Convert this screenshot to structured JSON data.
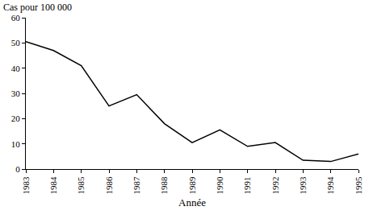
{
  "chart_data": {
    "type": "line",
    "ylabel": "Cas pour 100 000",
    "xlabel": "Année",
    "x": [
      1983,
      1984,
      1985,
      1986,
      1987,
      1988,
      1989,
      1990,
      1991,
      1992,
      1993,
      1994,
      1995
    ],
    "values": [
      50.5,
      47,
      41,
      25,
      29.5,
      18,
      10.5,
      15.5,
      9,
      10.5,
      3.5,
      3,
      6
    ],
    "color": "#000000",
    "xlim": [
      1983,
      1995
    ],
    "xticks": [
      1983,
      1984,
      1985,
      1986,
      1987,
      1988,
      1989,
      1990,
      1991,
      1992,
      1993,
      1994,
      1995
    ],
    "ylim": [
      0,
      60
    ],
    "yticks": [
      0,
      10,
      20,
      30,
      40,
      50,
      60
    ],
    "grid": false
  }
}
